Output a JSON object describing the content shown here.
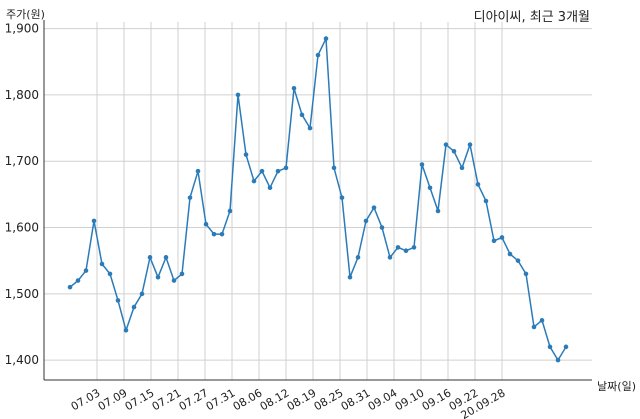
{
  "chart_data": {
    "type": "line",
    "title": "디아이씨, 최근 3개월",
    "xlabel": "날짜(일)",
    "ylabel": "주가(원)",
    "ylim": [
      1370,
      1910
    ],
    "yticks": [
      1400,
      1500,
      1600,
      1700,
      1800,
      1900
    ],
    "ytick_labels": [
      "1,400",
      "1,500",
      "1,600",
      "1,700",
      "1,800",
      "1,900"
    ],
    "xticks": [
      "07.03",
      "07.09",
      "07.15",
      "07.21",
      "07.27",
      "07.31",
      "08.06",
      "08.12",
      "08.19",
      "08.25",
      "08.31",
      "09.04",
      "09.10",
      "09.16",
      "09.22",
      "20.09.28"
    ],
    "grid": true,
    "color": "#2b7bb9",
    "series": [
      {
        "values": [
          1510,
          1520,
          1535,
          1610,
          1545,
          1530,
          1490,
          1445,
          1480,
          1500,
          1555,
          1525,
          1555,
          1520,
          1530,
          1645,
          1685,
          1605,
          1590,
          1590,
          1625,
          1800,
          1710,
          1670,
          1685,
          1660,
          1685,
          1690,
          1810,
          1770,
          1750,
          1860,
          1885,
          1690,
          1645,
          1525,
          1555,
          1610,
          1630,
          1600,
          1555,
          1570,
          1565,
          1570,
          1695,
          1660,
          1625,
          1725,
          1715,
          1690,
          1725,
          1665,
          1640,
          1580,
          1585,
          1560,
          1550,
          1530,
          1450,
          1460,
          1420,
          1400,
          1420
        ]
      }
    ]
  }
}
